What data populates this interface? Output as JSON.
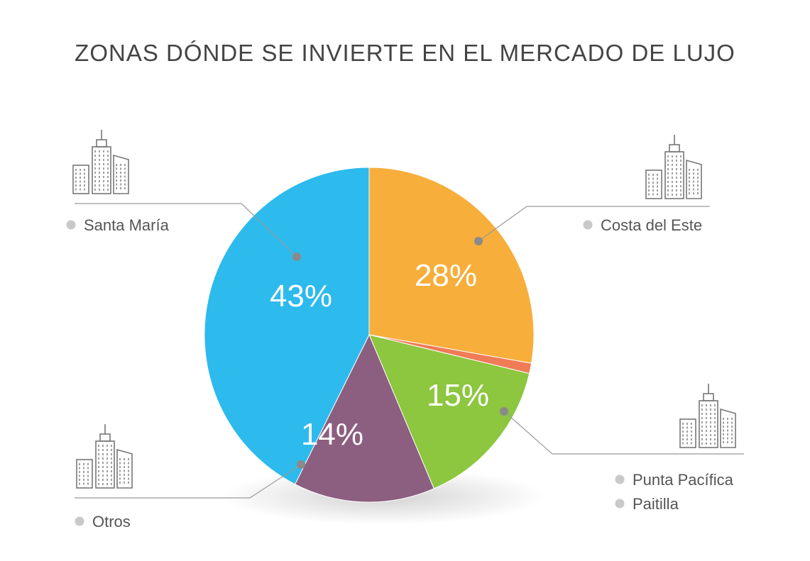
{
  "chart_data": {
    "type": "pie",
    "title": "ZONAS DÓNDE SE INVIERTE EN EL MERCADO DE LUJO",
    "slices": [
      {
        "label": "Costa del Este",
        "value": 28,
        "display": "28%",
        "color": "#F7AE3B"
      },
      {
        "label": "Punta Pacífica",
        "value": 1,
        "display": "",
        "color": "#EF7B57"
      },
      {
        "label": "Paitilla",
        "value": 15,
        "display": "15%",
        "color": "#8DC63F"
      },
      {
        "label": "Otros",
        "value": 14,
        "display": "14%",
        "color": "#8C5E80"
      },
      {
        "label": "Santa María",
        "value": 43,
        "display": "43%",
        "color": "#2DBAEC"
      }
    ],
    "legend": [
      {
        "key": "santa_maria",
        "lines": [
          "Santa María"
        ]
      },
      {
        "key": "costa",
        "lines": [
          "Costa del Este"
        ]
      },
      {
        "key": "punta",
        "lines": [
          "Punta Pacífica",
          "Paitilla"
        ]
      },
      {
        "key": "otros",
        "lines": [
          "Otros"
        ]
      }
    ]
  },
  "icons": [
    "buildings-icon",
    "buildings-icon",
    "buildings-icon",
    "buildings-icon"
  ]
}
